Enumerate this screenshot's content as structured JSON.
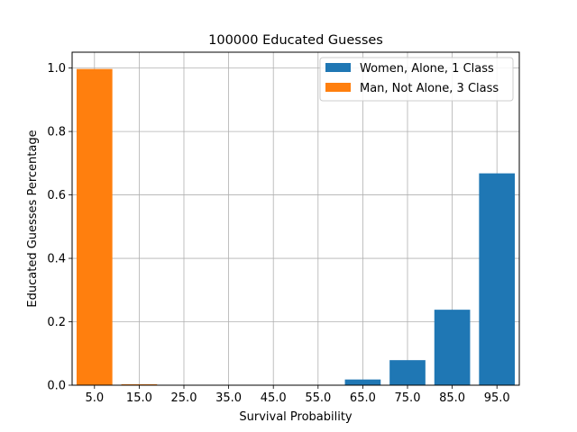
{
  "chart_data": {
    "type": "bar",
    "title": "100000 Educated Guesses",
    "xlabel": "Survival Probability",
    "ylabel": "Educated Guesses Percentage",
    "categories": [
      "5.0",
      "15.0",
      "25.0",
      "35.0",
      "45.0",
      "55.0",
      "65.0",
      "75.0",
      "85.0",
      "95.0"
    ],
    "x": [
      5,
      15,
      25,
      35,
      45,
      55,
      65,
      75,
      85,
      95
    ],
    "ylim": [
      0,
      1.05
    ],
    "yticks": [
      "0.0",
      "0.2",
      "0.4",
      "0.6",
      "0.8",
      "1.0"
    ],
    "grid": true,
    "legend_position": "top-right",
    "series": [
      {
        "name": "Women, Alone, 1 Class",
        "color": "#1f77b4",
        "values": [
          0,
          0,
          0,
          0,
          0,
          0,
          0.018,
          0.079,
          0.238,
          0.668
        ]
      },
      {
        "name": "Man, Not Alone, 3 Class",
        "color": "#ff7f0e",
        "values": [
          0.997,
          0.003,
          0,
          0,
          0,
          0,
          0,
          0,
          0,
          0
        ]
      }
    ]
  }
}
